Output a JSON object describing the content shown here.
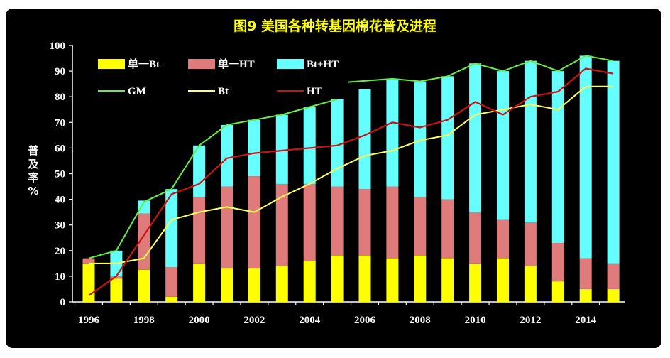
{
  "title": "图9  美国各种转基因棉花普及进程",
  "ylabel_chars": [
    "普",
    "及",
    "率",
    "%"
  ],
  "colors": {
    "background": "#000000",
    "title": "#ffff00",
    "single_bt": "#ffff00",
    "single_ht": "#e07b7b",
    "bt_ht": "#66ffff",
    "gm_line": "#66ee44",
    "bt_line": "#ffff55",
    "ht_line": "#cc1111",
    "text": "#ffffff"
  },
  "chart_data": {
    "type": "bar",
    "stacked": true,
    "title": "图9  美国各种转基因棉花普及进程",
    "ylabel": "普及率%",
    "xlabel": "",
    "ylim": [
      0,
      100
    ],
    "yticks": [
      0,
      10,
      20,
      30,
      40,
      50,
      60,
      70,
      80,
      90,
      100
    ],
    "x": [
      1996,
      1997,
      1998,
      1999,
      2000,
      2001,
      2002,
      2003,
      2004,
      2005,
      2006,
      2007,
      2008,
      2009,
      2010,
      2011,
      2012,
      2013,
      2014,
      2015
    ],
    "xtick_labels": [
      "1996",
      "1998",
      "2000",
      "2002",
      "2004",
      "2006",
      "2008",
      "2010",
      "2012",
      "2014"
    ],
    "legend": {
      "placement": "top-left",
      "entries": [
        {
          "label": "单一Bt",
          "kind": "bar",
          "series": "single_bt"
        },
        {
          "label": "单一HT",
          "kind": "bar",
          "series": "single_ht"
        },
        {
          "label": "Bt+HT",
          "kind": "bar",
          "series": "bt_ht"
        },
        {
          "label": "GM",
          "kind": "line",
          "series": "gm_line"
        },
        {
          "label": "Bt",
          "kind": "line",
          "series": "bt_line"
        },
        {
          "label": "HT",
          "kind": "line",
          "series": "ht_line"
        }
      ]
    },
    "bar_series": [
      {
        "name": "单一Bt",
        "key": "single_bt",
        "values": [
          15,
          9,
          12.5,
          2,
          15,
          13,
          13,
          14,
          16,
          18,
          18,
          17,
          18,
          17,
          15,
          17,
          14,
          8,
          5,
          5
        ]
      },
      {
        "name": "单一HT",
        "key": "single_ht",
        "values": [
          2,
          1,
          22,
          11.5,
          26,
          32,
          36,
          32,
          30,
          27,
          26,
          28,
          23,
          23,
          20,
          15,
          17,
          15,
          12,
          10
        ]
      },
      {
        "name": "Bt+HT",
        "key": "bt_ht",
        "values": [
          0,
          10,
          5,
          30.5,
          20,
          24,
          22,
          27,
          30,
          34,
          39,
          42,
          45,
          48,
          58,
          58,
          63,
          67,
          79,
          79
        ]
      }
    ],
    "line_series": [
      {
        "name": "GM",
        "key": "gm_line",
        "values": [
          17,
          20,
          39,
          44,
          61,
          69,
          71,
          73,
          76,
          79,
          null,
          87,
          86,
          88,
          93,
          90,
          94,
          90,
          96,
          94
        ]
      },
      {
        "name": "Bt",
        "key": "bt_line",
        "values": [
          15,
          15,
          17,
          32,
          35,
          37,
          35,
          41,
          46,
          52,
          57,
          59,
          63,
          65,
          73,
          75,
          77,
          75,
          84,
          84
        ]
      },
      {
        "name": "HT",
        "key": "ht_line",
        "values": [
          2.5,
          10,
          26,
          42,
          46,
          56,
          58,
          59,
          60,
          61,
          65,
          70,
          68,
          71,
          78,
          73,
          80,
          82,
          91,
          89
        ]
      }
    ],
    "gm_segment_break_after_index": 9,
    "gm_second_segment_start": 2005.4
  }
}
